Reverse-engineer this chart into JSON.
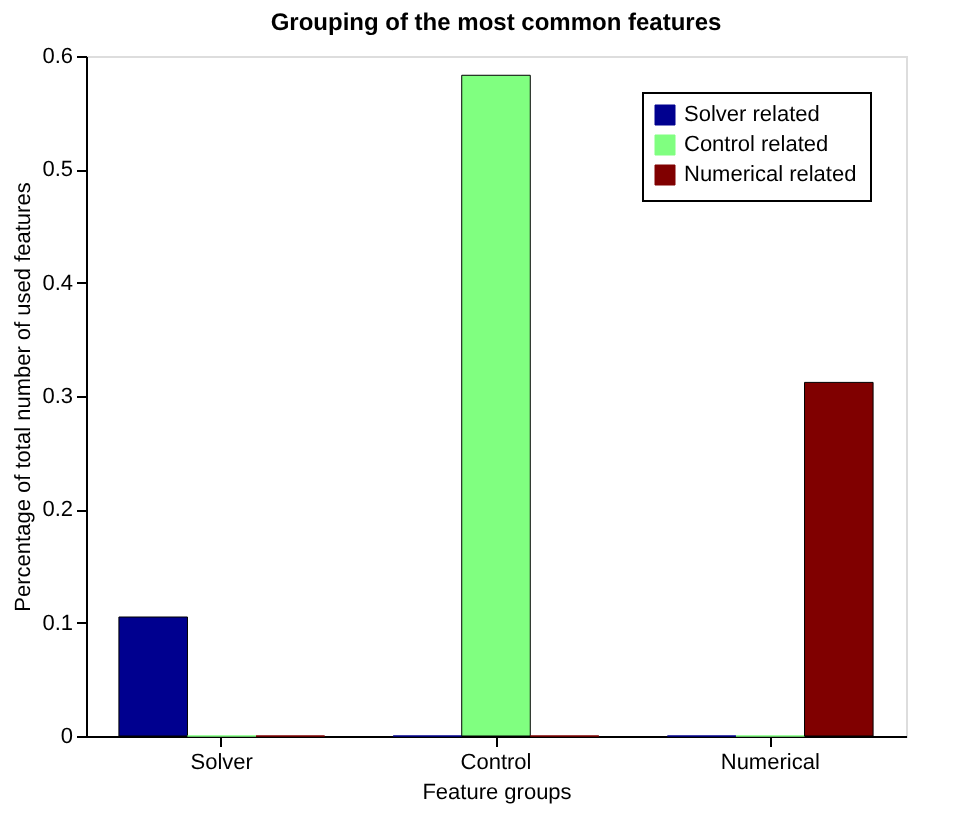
{
  "chart_data": {
    "type": "bar",
    "title": "Grouping of the most common features",
    "xlabel": "Feature groups",
    "ylabel": "Percentage of total number of used features",
    "categories": [
      "Solver",
      "Control",
      "Numerical"
    ],
    "series": [
      {
        "name": "Solver related",
        "color": "#00008f",
        "values": [
          0.105,
          0,
          0
        ]
      },
      {
        "name": "Control related",
        "color": "#80ff80",
        "values": [
          0,
          0.583,
          0
        ]
      },
      {
        "name": "Numerical related",
        "color": "#800000",
        "values": [
          0,
          0,
          0.312
        ]
      }
    ],
    "ylim": [
      0,
      0.6
    ],
    "yticks": [
      0,
      0.1,
      0.2,
      0.3,
      0.4,
      0.5,
      0.6
    ],
    "grid": false,
    "legend": "top right"
  }
}
